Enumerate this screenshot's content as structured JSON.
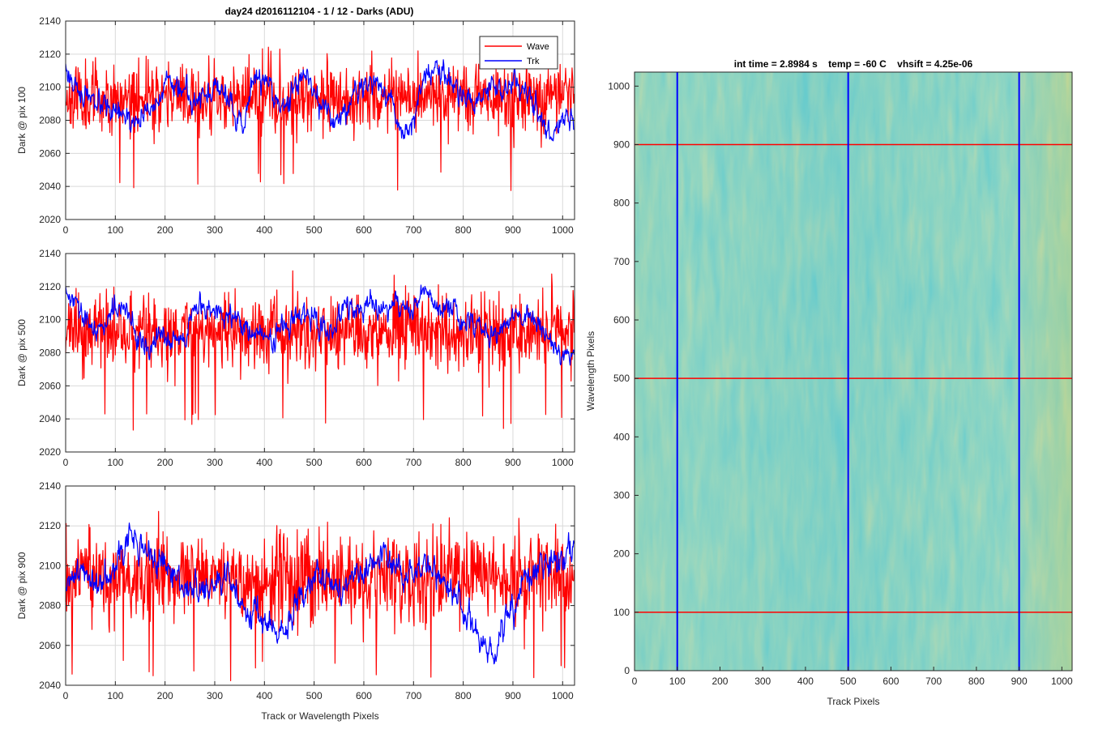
{
  "figure_title": "day24 d2016112104 - 1 / 12 - Darks (ADU)",
  "colors": {
    "wave": "#ff0000",
    "trk": "#0000ff",
    "grid": "#d9d9d9",
    "axis": "#262626"
  },
  "chart_data": [
    {
      "type": "line",
      "title": "day24 d2016112104 - 1 / 12 - Darks (ADU)",
      "ylabel": "Dark @ pix 100",
      "xlabel": "",
      "xlim": [
        0,
        1024
      ],
      "ylim": [
        2020,
        2140
      ],
      "xticks": [
        0,
        100,
        200,
        300,
        400,
        500,
        600,
        700,
        800,
        900,
        1000
      ],
      "yticks": [
        2020,
        2040,
        2060,
        2080,
        2100,
        2120,
        2140
      ],
      "grid": true,
      "legend": {
        "placement": "top-right",
        "entries": [
          "Wave",
          "Trk"
        ]
      },
      "series": [
        {
          "name": "Wave",
          "color": "#ff0000",
          "n_points": 1024,
          "mean": 2094,
          "noise": 10,
          "seed": 11,
          "spike_min": 2037,
          "trend_x": [
            0,
            1024
          ],
          "trend_y": [
            2094,
            2094
          ]
        },
        {
          "name": "Trk",
          "color": "#0000ff",
          "n_points": 1024,
          "noise": 3,
          "seed": 17,
          "trend_x": [
            0,
            20,
            60,
            110,
            140,
            160,
            200,
            240,
            270,
            300,
            330,
            360,
            380,
            410,
            440,
            470,
            490,
            510,
            540,
            560,
            580,
            620,
            650,
            680,
            700,
            720,
            760,
            790,
            820,
            860,
            880,
            900,
            940,
            960,
            980,
            1000,
            1024
          ],
          "trend_y": [
            2112,
            2100,
            2088,
            2082,
            2078,
            2084,
            2100,
            2098,
            2092,
            2100,
            2090,
            2076,
            2108,
            2100,
            2086,
            2110,
            2104,
            2090,
            2080,
            2082,
            2098,
            2104,
            2096,
            2070,
            2080,
            2106,
            2112,
            2096,
            2092,
            2102,
            2098,
            2104,
            2092,
            2078,
            2072,
            2084,
            2080
          ]
        }
      ]
    },
    {
      "type": "line",
      "ylabel": "Dark @ pix 500",
      "xlabel": "",
      "xlim": [
        0,
        1024
      ],
      "ylim": [
        2020,
        2140
      ],
      "xticks": [
        0,
        100,
        200,
        300,
        400,
        500,
        600,
        700,
        800,
        900,
        1000
      ],
      "yticks": [
        2020,
        2040,
        2060,
        2080,
        2100,
        2120,
        2140
      ],
      "grid": true,
      "series": [
        {
          "name": "Wave",
          "color": "#ff0000",
          "n_points": 1024,
          "mean": 2092,
          "noise": 11,
          "seed": 23,
          "spike_min": 2032,
          "trend_x": [
            0,
            1024
          ],
          "trend_y": [
            2092,
            2092
          ]
        },
        {
          "name": "Trk",
          "color": "#0000ff",
          "n_points": 1024,
          "noise": 3,
          "seed": 29,
          "trend_x": [
            0,
            30,
            60,
            100,
            130,
            160,
            200,
            240,
            260,
            300,
            340,
            380,
            420,
            460,
            500,
            540,
            560,
            600,
            640,
            700,
            720,
            740,
            780,
            820,
            860,
            900,
            940,
            970,
            1000,
            1024
          ],
          "trend_y": [
            2116,
            2104,
            2090,
            2110,
            2100,
            2082,
            2090,
            2084,
            2108,
            2104,
            2100,
            2092,
            2088,
            2102,
            2098,
            2094,
            2110,
            2104,
            2108,
            2106,
            2122,
            2108,
            2104,
            2098,
            2092,
            2100,
            2104,
            2090,
            2078,
            2084
          ]
        }
      ]
    },
    {
      "type": "line",
      "ylabel": "Dark @ pix 900",
      "xlabel": "Track or Wavelength Pixels",
      "xlim": [
        0,
        1024
      ],
      "ylim": [
        2040,
        2140
      ],
      "xticks": [
        0,
        100,
        200,
        300,
        400,
        500,
        600,
        700,
        800,
        900,
        1000
      ],
      "yticks": [
        2040,
        2060,
        2080,
        2100,
        2120,
        2140
      ],
      "grid": true,
      "series": [
        {
          "name": "Wave",
          "color": "#ff0000",
          "n_points": 1024,
          "mean": 2094,
          "noise": 11,
          "seed": 37,
          "spike_min": 2042,
          "trend_x": [
            0,
            1024
          ],
          "trend_y": [
            2094,
            2094
          ]
        },
        {
          "name": "Trk",
          "color": "#0000ff",
          "n_points": 1024,
          "noise": 3.2,
          "seed": 41,
          "trend_x": [
            0,
            20,
            60,
            100,
            130,
            160,
            200,
            240,
            280,
            320,
            360,
            400,
            430,
            460,
            500,
            540,
            600,
            640,
            680,
            720,
            760,
            800,
            830,
            860,
            880,
            920,
            960,
            1000,
            1024
          ],
          "trend_y": [
            2084,
            2100,
            2090,
            2104,
            2114,
            2108,
            2098,
            2090,
            2086,
            2094,
            2080,
            2074,
            2062,
            2076,
            2100,
            2088,
            2096,
            2104,
            2096,
            2100,
            2094,
            2078,
            2064,
            2052,
            2068,
            2090,
            2100,
            2104,
            2112
          ]
        }
      ]
    },
    {
      "type": "heatmap",
      "title": "int time = 2.8984 s    temp = -60 C    vhsift = 4.25e-06",
      "xlabel": "Track Pixels",
      "ylabel": "Wavelength Pixels",
      "xlim": [
        0,
        1024
      ],
      "ylim": [
        0,
        1024
      ],
      "xticks": [
        0,
        100,
        200,
        300,
        400,
        500,
        600,
        700,
        800,
        900,
        1000
      ],
      "yticks": [
        0,
        100,
        200,
        300,
        400,
        500,
        600,
        700,
        800,
        900,
        1000
      ],
      "colormap": [
        "#1d9fab",
        "#48ad98",
        "#7bb97c",
        "#b9c05a"
      ],
      "vertical_markers": {
        "values": [
          100,
          500,
          900
        ],
        "color": "#0000ff"
      },
      "horizontal_markers": {
        "values": [
          100,
          500,
          900
        ],
        "color": "#ff0000"
      }
    }
  ]
}
